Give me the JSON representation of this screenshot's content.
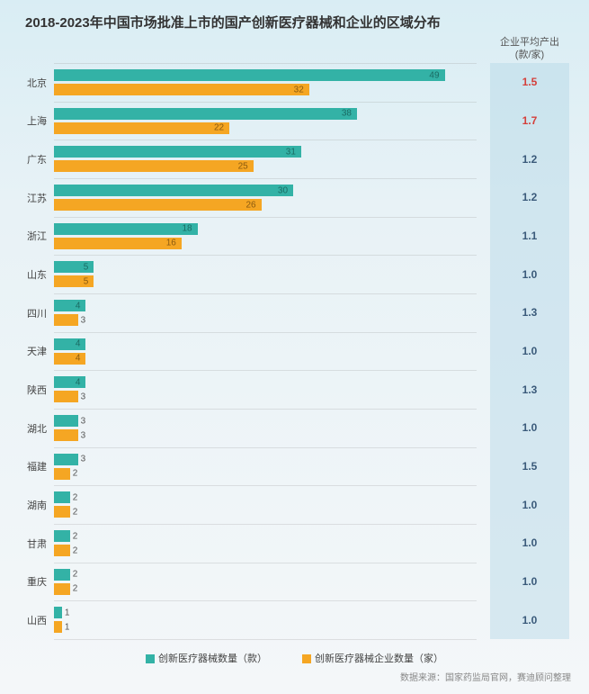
{
  "title": "2018-2023年中国市场批准上市的国产创新医疗器械和企业的区域分布",
  "ratio_header_l1": "企业平均产出",
  "ratio_header_l2": "(款/家)",
  "series1_label": "创新医疗器械数量（款）",
  "series2_label": "创新医疗器械企业数量（家）",
  "source": "数据来源：国家药监局官网，赛迪顾问整理",
  "color1": "#33b2a6",
  "color2": "#f5a623",
  "ratio_color_hi": "#d43f3a",
  "ratio_color_normal": "#3a5a7a",
  "xmax": 53,
  "rows": [
    {
      "region": "北京",
      "v1": 49,
      "v2": 32,
      "ratio": "1.5",
      "hi": true
    },
    {
      "region": "上海",
      "v1": 38,
      "v2": 22,
      "ratio": "1.7",
      "hi": true
    },
    {
      "region": "广东",
      "v1": 31,
      "v2": 25,
      "ratio": "1.2",
      "hi": false
    },
    {
      "region": "江苏",
      "v1": 30,
      "v2": 26,
      "ratio": "1.2",
      "hi": false
    },
    {
      "region": "浙江",
      "v1": 18,
      "v2": 16,
      "ratio": "1.1",
      "hi": false
    },
    {
      "region": "山东",
      "v1": 5,
      "v2": 5,
      "ratio": "1.0",
      "hi": false
    },
    {
      "region": "四川",
      "v1": 4,
      "v2": 3,
      "ratio": "1.3",
      "hi": false
    },
    {
      "region": "天津",
      "v1": 4,
      "v2": 4,
      "ratio": "1.0",
      "hi": false
    },
    {
      "region": "陕西",
      "v1": 4,
      "v2": 3,
      "ratio": "1.3",
      "hi": false
    },
    {
      "region": "湖北",
      "v1": 3,
      "v2": 3,
      "ratio": "1.0",
      "hi": false
    },
    {
      "region": "福建",
      "v1": 3,
      "v2": 2,
      "ratio": "1.5",
      "hi": false
    },
    {
      "region": "湖南",
      "v1": 2,
      "v2": 2,
      "ratio": "1.0",
      "hi": false
    },
    {
      "region": "甘肃",
      "v1": 2,
      "v2": 2,
      "ratio": "1.0",
      "hi": false
    },
    {
      "region": "重庆",
      "v1": 2,
      "v2": 2,
      "ratio": "1.0",
      "hi": false
    },
    {
      "region": "山西",
      "v1": 1,
      "v2": 1,
      "ratio": "1.0",
      "hi": false
    }
  ]
}
